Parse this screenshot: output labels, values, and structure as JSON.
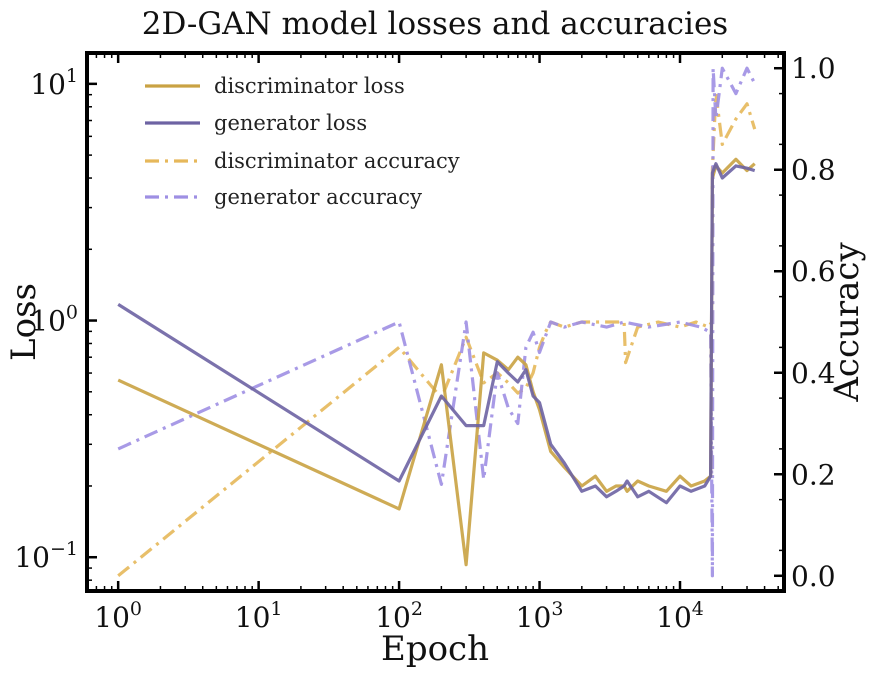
{
  "chart_data": {
    "type": "line",
    "title": "2D-GAN model losses and accuracies",
    "xlabel": "Epoch",
    "ylabel": "Loss",
    "ylabel_right": "Accuracy",
    "xscale": "log",
    "yscale_left": "log",
    "xlim": [
      0.6,
      55000
    ],
    "ylim_left": [
      0.072,
      13.5
    ],
    "ylim_right": [
      -0.03,
      1.03
    ],
    "x_ticks": [
      {
        "value": 1,
        "base": "10",
        "exp": "0"
      },
      {
        "value": 10,
        "base": "10",
        "exp": "1"
      },
      {
        "value": 100,
        "base": "10",
        "exp": "2"
      },
      {
        "value": 1000,
        "base": "10",
        "exp": "3"
      },
      {
        "value": 10000,
        "base": "10",
        "exp": "4"
      }
    ],
    "y_ticks_left": [
      {
        "value": 0.1,
        "base": "10",
        "exp": "−1"
      },
      {
        "value": 1,
        "base": "10",
        "exp": "0"
      },
      {
        "value": 10,
        "base": "10",
        "exp": "1"
      }
    ],
    "y_ticks_right": [
      {
        "value": 0.0,
        "label": "0.0"
      },
      {
        "value": 0.2,
        "label": "0.2"
      },
      {
        "value": 0.4,
        "label": "0.4"
      },
      {
        "value": 0.6,
        "label": "0.6"
      },
      {
        "value": 0.8,
        "label": "0.8"
      },
      {
        "value": 1.0,
        "label": "1.0"
      }
    ],
    "grid": false,
    "legend_position": "top-left",
    "series": [
      {
        "name": "discriminator loss",
        "axis": "left",
        "style": "solid",
        "color": "#c9a243",
        "x": [
          1,
          100,
          200,
          300,
          400,
          500,
          600,
          700,
          800,
          900,
          1000,
          1200,
          1500,
          2000,
          2500,
          3000,
          3500,
          4000,
          4200,
          5000,
          6000,
          8000,
          10000,
          12000,
          15000,
          16500,
          17000,
          18000,
          20000,
          25000,
          30000,
          34000
        ],
        "y": [
          0.56,
          0.16,
          0.65,
          0.093,
          0.73,
          0.68,
          0.62,
          0.7,
          0.65,
          0.5,
          0.42,
          0.28,
          0.24,
          0.2,
          0.22,
          0.19,
          0.2,
          0.2,
          0.19,
          0.21,
          0.2,
          0.19,
          0.22,
          0.2,
          0.21,
          0.22,
          4.0,
          4.5,
          4.2,
          4.8,
          4.3,
          4.6
        ]
      },
      {
        "name": "generator loss",
        "axis": "left",
        "style": "solid",
        "color": "#6d63a3",
        "x": [
          1,
          100,
          200,
          300,
          400,
          500,
          600,
          700,
          800,
          900,
          1000,
          1200,
          1500,
          2000,
          2500,
          3000,
          3500,
          4000,
          4200,
          5000,
          6000,
          8000,
          10000,
          12000,
          15000,
          16500,
          17000,
          18000,
          20000,
          25000,
          30000,
          34000
        ],
        "y": [
          1.17,
          0.21,
          0.48,
          0.36,
          0.36,
          0.67,
          0.6,
          0.55,
          0.62,
          0.48,
          0.45,
          0.3,
          0.25,
          0.19,
          0.2,
          0.18,
          0.19,
          0.2,
          0.21,
          0.18,
          0.19,
          0.17,
          0.2,
          0.19,
          0.2,
          0.22,
          4.2,
          4.6,
          4.0,
          4.5,
          4.4,
          4.3
        ]
      },
      {
        "name": "discriminator accuracy",
        "axis": "right",
        "style": "dashdot",
        "color": "#e6b85a",
        "x": [
          1,
          100,
          200,
          300,
          400,
          500,
          600,
          700,
          800,
          900,
          1000,
          1100,
          1200,
          1500,
          2000,
          3000,
          4000,
          4100,
          5000,
          7000,
          10000,
          13000,
          16000,
          16800,
          17000,
          18000,
          20000,
          25000,
          30000,
          34000
        ],
        "y": [
          0.0,
          0.45,
          0.35,
          0.47,
          0.38,
          0.4,
          0.38,
          0.36,
          0.37,
          0.4,
          0.45,
          0.48,
          0.5,
          0.49,
          0.5,
          0.5,
          0.5,
          0.42,
          0.49,
          0.5,
          0.49,
          0.5,
          0.49,
          0.5,
          0.8,
          0.95,
          0.85,
          0.9,
          0.93,
          0.88
        ]
      },
      {
        "name": "generator accuracy",
        "axis": "right",
        "style": "dashdot",
        "color": "#9e8fe3",
        "x": [
          1,
          100,
          200,
          300,
          400,
          500,
          600,
          700,
          800,
          900,
          1000,
          1200,
          1500,
          2000,
          3000,
          4000,
          6000,
          10000,
          14000,
          16500,
          17000,
          17200,
          18000,
          20000,
          25000,
          30000,
          34000
        ],
        "y": [
          0.25,
          0.5,
          0.18,
          0.5,
          0.19,
          0.4,
          0.33,
          0.3,
          0.45,
          0.48,
          0.44,
          0.5,
          0.49,
          0.5,
          0.49,
          0.5,
          0.49,
          0.5,
          0.49,
          0.48,
          0.0,
          1.0,
          0.9,
          1.0,
          0.95,
          1.0,
          0.97
        ]
      }
    ]
  }
}
